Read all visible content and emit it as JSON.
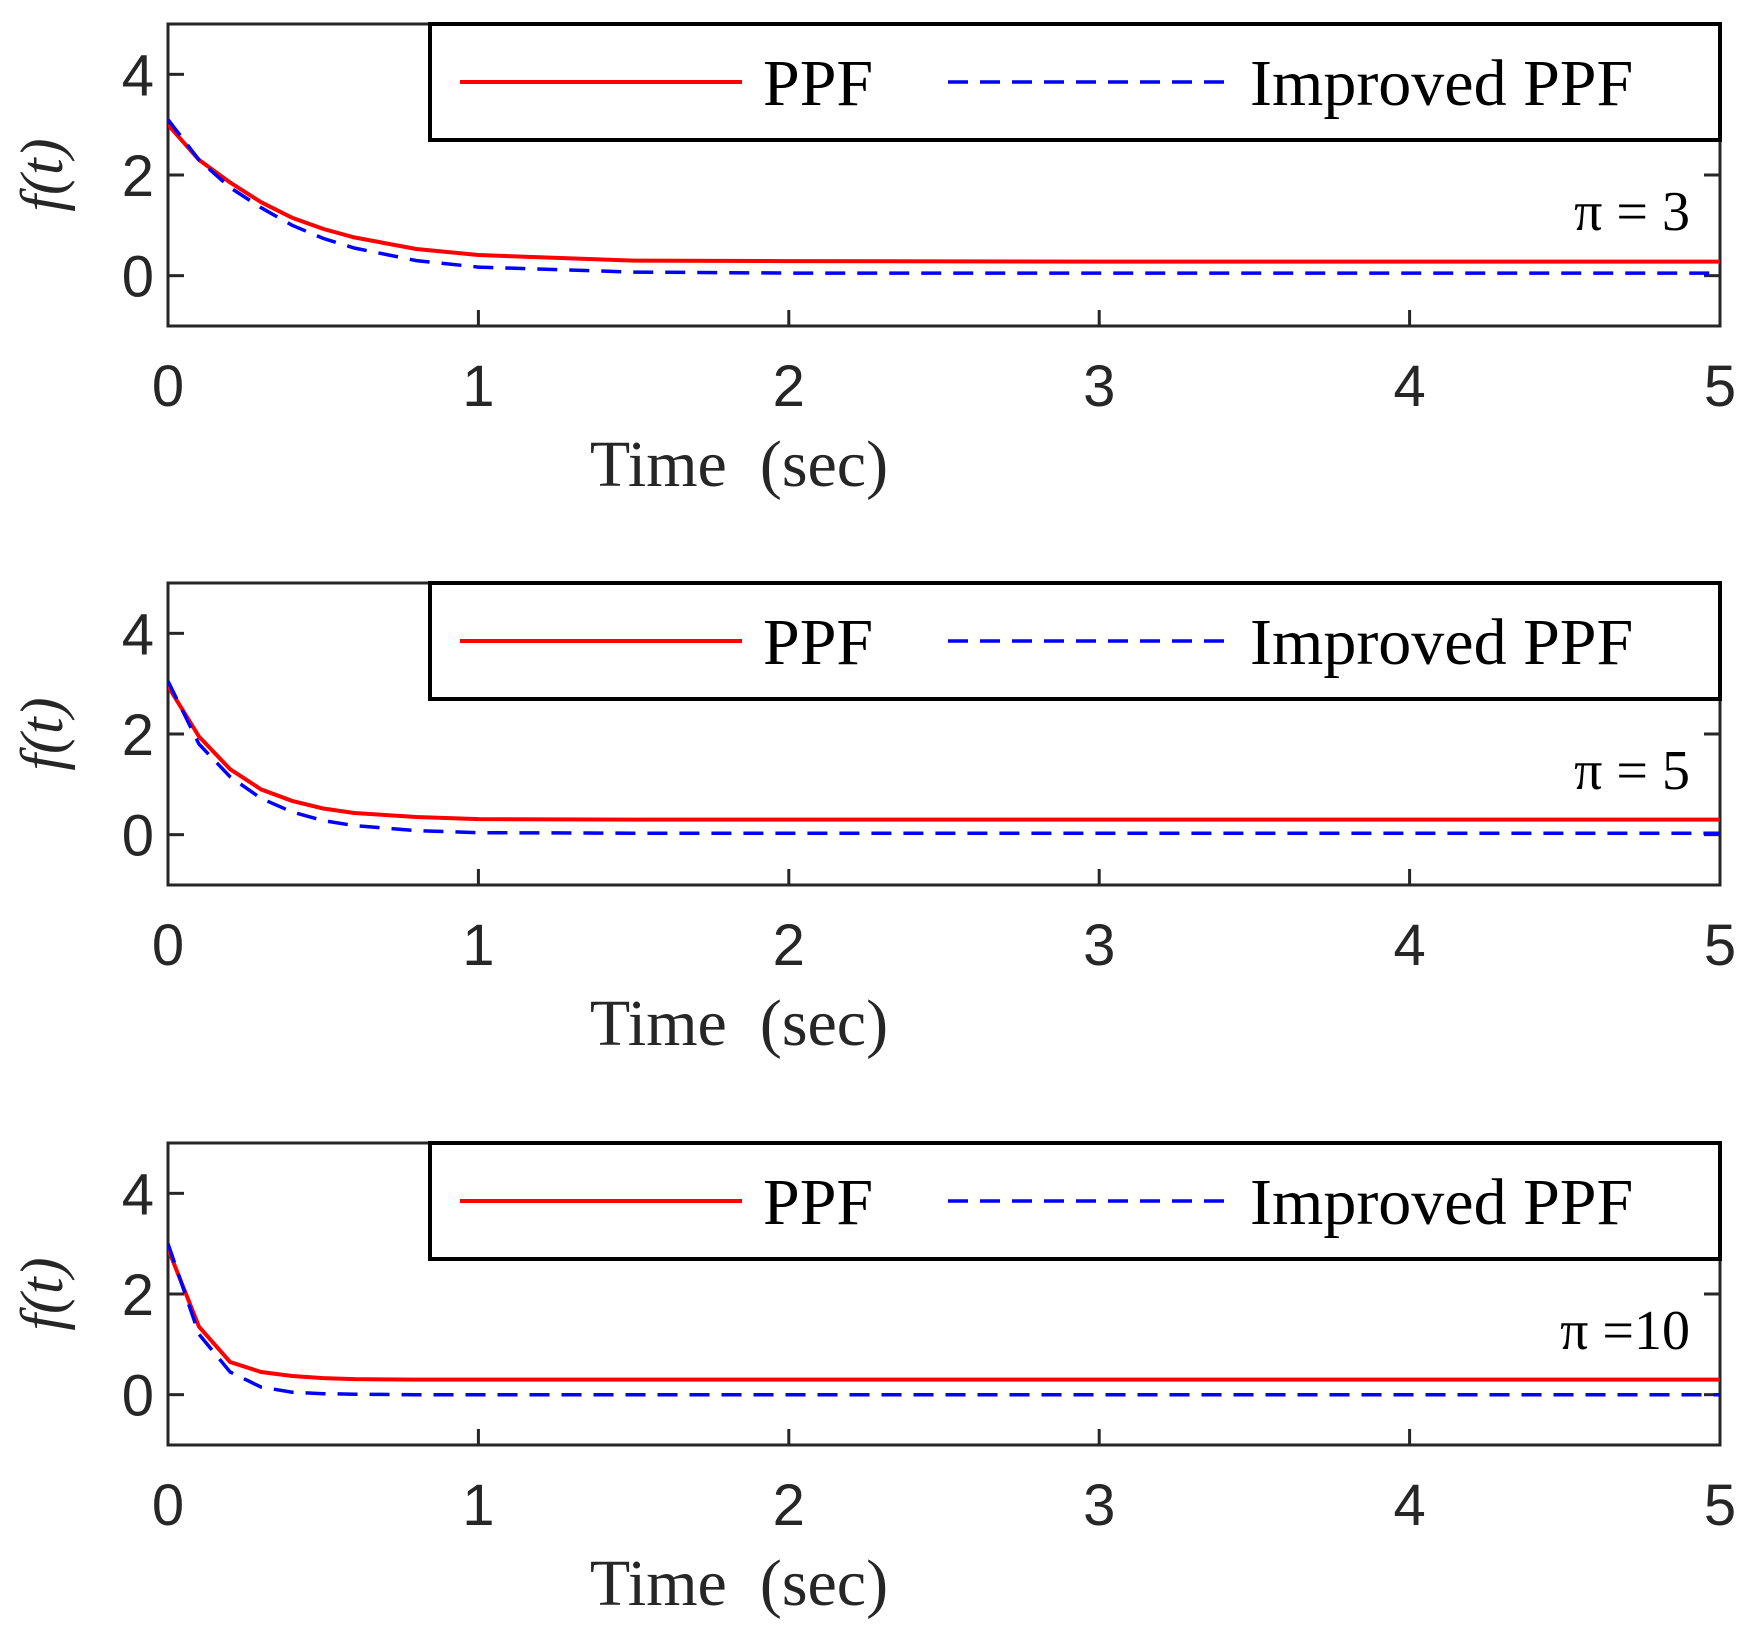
{
  "colors": {
    "ppf": "#ff0000",
    "improved": "#0000ff",
    "axis": "#262626"
  },
  "chart_data": [
    {
      "type": "line",
      "xlabel": "Time  (sec)",
      "ylabel": "f(t)",
      "xlim": [
        0,
        5
      ],
      "ylim": [
        -1,
        5
      ],
      "xticks": [
        "0",
        "1",
        "2",
        "3",
        "4",
        "5"
      ],
      "yticks": [
        "0",
        "2",
        "4"
      ],
      "legend": [
        "PPF",
        "Improved PPF"
      ],
      "legend_position": "top-right",
      "annotation": "π = 3",
      "x": [
        0,
        0.1,
        0.2,
        0.3,
        0.4,
        0.5,
        0.6,
        0.8,
        1.0,
        1.5,
        2,
        3,
        4,
        5
      ],
      "series": [
        {
          "name": "PPF",
          "values": [
            3.0,
            2.3,
            1.85,
            1.46,
            1.15,
            0.93,
            0.76,
            0.53,
            0.41,
            0.3,
            0.29,
            0.28,
            0.28,
            0.28
          ]
        },
        {
          "name": "Improved PPF",
          "values": [
            3.1,
            2.3,
            1.75,
            1.35,
            1.0,
            0.74,
            0.55,
            0.3,
            0.17,
            0.07,
            0.05,
            0.05,
            0.05,
            0.05
          ]
        }
      ]
    },
    {
      "type": "line",
      "xlabel": "Time  (sec)",
      "ylabel": "f(t)",
      "xlim": [
        0,
        5
      ],
      "ylim": [
        -1,
        5
      ],
      "xticks": [
        "0",
        "1",
        "2",
        "3",
        "4",
        "5"
      ],
      "yticks": [
        "0",
        "2",
        "4"
      ],
      "legend": [
        "PPF",
        "Improved PPF"
      ],
      "legend_position": "top-right",
      "annotation": "π = 5",
      "x": [
        0,
        0.1,
        0.2,
        0.3,
        0.4,
        0.5,
        0.6,
        0.8,
        1.0,
        1.5,
        2,
        3,
        4,
        5
      ],
      "series": [
        {
          "name": "PPF",
          "values": [
            2.95,
            1.95,
            1.3,
            0.9,
            0.67,
            0.52,
            0.43,
            0.35,
            0.31,
            0.3,
            0.3,
            0.3,
            0.3,
            0.3
          ]
        },
        {
          "name": "Improved PPF",
          "values": [
            3.05,
            1.8,
            1.15,
            0.72,
            0.45,
            0.28,
            0.18,
            0.08,
            0.04,
            0.03,
            0.03,
            0.03,
            0.03,
            0.03
          ]
        }
      ]
    },
    {
      "type": "line",
      "xlabel": "Time  (sec)",
      "ylabel": "f(t)",
      "xlim": [
        0,
        5
      ],
      "ylim": [
        -1,
        5
      ],
      "xticks": [
        "0",
        "1",
        "2",
        "3",
        "4",
        "5"
      ],
      "yticks": [
        "0",
        "2",
        "4"
      ],
      "legend": [
        "PPF",
        "Improved PPF"
      ],
      "legend_position": "top-right",
      "annotation": "π =10",
      "x": [
        0,
        0.1,
        0.2,
        0.3,
        0.4,
        0.5,
        0.6,
        0.8,
        1.0,
        1.5,
        2,
        3,
        4,
        5
      ],
      "series": [
        {
          "name": "PPF",
          "values": [
            2.9,
            1.35,
            0.65,
            0.45,
            0.37,
            0.33,
            0.31,
            0.3,
            0.3,
            0.3,
            0.3,
            0.3,
            0.3,
            0.3
          ]
        },
        {
          "name": "Improved PPF",
          "values": [
            3.0,
            1.2,
            0.45,
            0.15,
            0.05,
            0.02,
            0.01,
            0.0,
            0.0,
            0.0,
            0.0,
            0.0,
            0.0,
            0.0
          ]
        }
      ]
    }
  ]
}
